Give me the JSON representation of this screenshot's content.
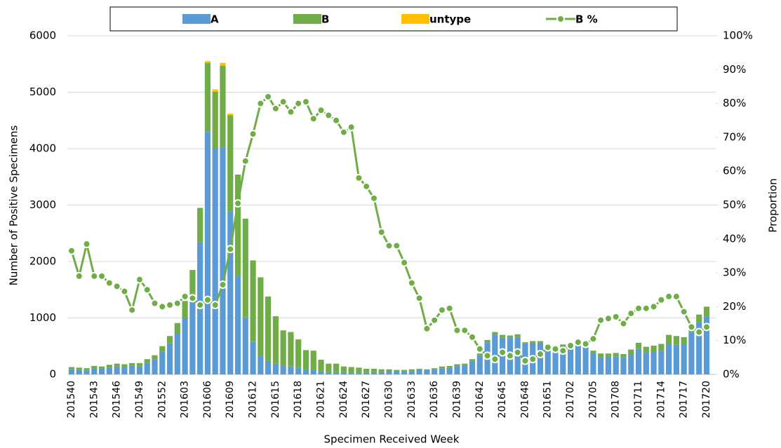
{
  "chart_data": {
    "type": "bar",
    "x_label": "Specimen Received Week",
    "y_label": "Number of Positive Specimens",
    "y2_label": "Proportion",
    "categories": [
      "201540",
      null,
      null,
      "201543",
      null,
      null,
      "201546",
      null,
      null,
      "201549",
      null,
      null,
      "201552",
      null,
      null,
      "201603",
      null,
      null,
      "201606",
      null,
      null,
      "201609",
      null,
      null,
      "201612",
      null,
      null,
      "201615",
      null,
      null,
      "201618",
      null,
      null,
      "201621",
      null,
      null,
      "201624",
      null,
      null,
      "201627",
      null,
      null,
      "201630",
      null,
      null,
      "201633",
      null,
      null,
      "201636",
      null,
      null,
      "201639",
      null,
      null,
      "201642",
      null,
      null,
      "201645",
      null,
      null,
      "201648",
      null,
      null,
      "201651",
      null,
      null,
      "201702",
      null,
      null,
      "201705",
      null,
      null,
      "201708",
      null,
      null,
      "201711",
      null,
      null,
      "201714",
      null,
      null,
      "201717",
      null,
      null,
      "201720"
    ],
    "series": [
      {
        "name": "A",
        "type": "bar",
        "color": "#5b9bd5",
        "values": [
          90,
          85,
          70,
          100,
          100,
          120,
          140,
          130,
          160,
          140,
          200,
          270,
          400,
          550,
          720,
          1000,
          1430,
          2340,
          4300,
          4000,
          4030,
          2890,
          1740,
          1010,
          580,
          330,
          240,
          190,
          150,
          140,
          120,
          80,
          80,
          60,
          40,
          40,
          40,
          30,
          30,
          40,
          40,
          40,
          50,
          50,
          50,
          60,
          80,
          80,
          90,
          110,
          120,
          150,
          160,
          240,
          340,
          570,
          700,
          650,
          650,
          660,
          550,
          560,
          560,
          500,
          470,
          490,
          500,
          530,
          540,
          380,
          310,
          310,
          320,
          300,
          360,
          450,
          390,
          410,
          420,
          540,
          530,
          540,
          750,
          930,
          1030
        ]
      },
      {
        "name": "B",
        "type": "bar",
        "color": "#70ad47",
        "values": [
          40,
          35,
          40,
          50,
          40,
          50,
          50,
          50,
          40,
          60,
          70,
          70,
          100,
          130,
          190,
          300,
          420,
          610,
          1220,
          1010,
          1440,
          1700,
          1800,
          1750,
          1440,
          1390,
          1140,
          840,
          630,
          610,
          500,
          350,
          340,
          200,
          150,
          150,
          100,
          100,
          90,
          60,
          60,
          50,
          40,
          30,
          30,
          30,
          20,
          10,
          20,
          30,
          30,
          30,
          30,
          30,
          30,
          40,
          50,
          50,
          40,
          50,
          20,
          30,
          30,
          40,
          40,
          40,
          50,
          60,
          60,
          40,
          60,
          60,
          60,
          60,
          80,
          110,
          100,
          100,
          120,
          160,
          150,
          120,
          130,
          130,
          170
        ]
      },
      {
        "name": "untype",
        "type": "bar",
        "color": "#ffc000",
        "values": [
          0,
          0,
          0,
          0,
          0,
          0,
          0,
          0,
          0,
          0,
          0,
          0,
          0,
          0,
          0,
          0,
          0,
          0,
          30,
          40,
          50,
          30,
          0,
          0,
          0,
          0,
          0,
          0,
          0,
          0,
          0,
          0,
          0,
          0,
          0,
          0,
          0,
          0,
          0,
          0,
          0,
          0,
          0,
          0,
          0,
          0,
          0,
          0,
          0,
          0,
          0,
          0,
          0,
          0,
          0,
          0,
          0,
          0,
          0,
          0,
          0,
          0,
          0,
          0,
          0,
          0,
          0,
          0,
          0,
          0,
          0,
          0,
          0,
          0,
          0,
          0,
          0,
          0,
          0,
          0,
          0,
          0,
          0,
          0,
          0
        ]
      },
      {
        "name": "B %",
        "type": "line",
        "axis": "y2",
        "color": "#70ad47",
        "values": [
          36.5,
          29,
          38.5,
          29,
          29,
          27,
          26,
          24.5,
          19,
          28,
          25,
          21,
          20,
          20.5,
          21,
          23,
          22.5,
          20.5,
          22,
          20.5,
          26.5,
          37,
          50.5,
          63,
          71,
          80,
          82,
          78.5,
          80.5,
          77.5,
          80,
          80.5,
          75.5,
          78,
          76.5,
          75,
          71.5,
          73,
          58,
          55.5,
          52,
          42,
          38,
          38,
          33,
          27,
          22.5,
          13.5,
          16,
          19,
          19.5,
          13,
          13,
          11,
          7.5,
          5.5,
          4.5,
          6.5,
          5.5,
          6.5,
          4,
          4.5,
          6,
          8,
          7.5,
          7,
          8.5,
          9.5,
          9,
          10.5,
          16,
          16.5,
          17,
          15,
          18,
          19.5,
          19.5,
          20,
          22,
          23,
          23,
          18.5,
          14,
          12.5,
          14
        ]
      }
    ],
    "stacked": true,
    "ylim": [
      0,
      6000
    ],
    "yticks": [
      0,
      1000,
      2000,
      3000,
      4000,
      5000,
      6000
    ],
    "y2lim": [
      0,
      100
    ],
    "y2ticks": [
      {
        "value": 0,
        "label": "0%"
      },
      {
        "value": 10,
        "label": "10%"
      },
      {
        "value": 20,
        "label": "20%"
      },
      {
        "value": 30,
        "label": "30%"
      },
      {
        "value": 40,
        "label": "40%"
      },
      {
        "value": 50,
        "label": "50%"
      },
      {
        "value": 60,
        "label": "60%"
      },
      {
        "value": 70,
        "label": "70%"
      },
      {
        "value": 80,
        "label": "80%"
      },
      {
        "value": 90,
        "label": "90%"
      },
      {
        "value": 100,
        "label": "100%"
      }
    ],
    "grid": true,
    "legend": "top"
  }
}
